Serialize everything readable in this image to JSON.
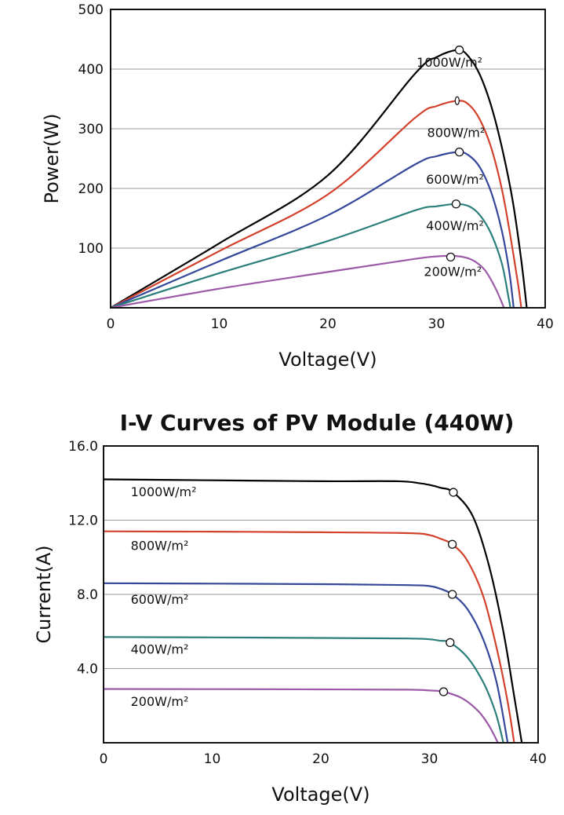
{
  "chart_data": [
    {
      "type": "line",
      "title": "",
      "xlabel": "Voltage(V)",
      "ylabel": "Power(W)",
      "xlim": [
        0,
        40
      ],
      "ylim": [
        0,
        500
      ],
      "x_ticks": [
        "0",
        "10",
        "20",
        "30",
        "40"
      ],
      "x_tick_values": [
        0,
        10,
        20,
        30,
        40
      ],
      "y_ticks": [
        "100",
        "200",
        "300",
        "400",
        "500"
      ],
      "y_tick_values": [
        100,
        200,
        300,
        400,
        500
      ],
      "grid": "horizontal",
      "series": [
        {
          "name": "1000W/m²",
          "color": "#000000",
          "label_at": [
            31.2,
            404
          ],
          "points": [
            [
              0,
              0
            ],
            [
              10,
              108
            ],
            [
              20,
              222
            ],
            [
              28,
              392
            ],
            [
              30,
              420
            ],
            [
              32,
              432
            ],
            [
              33,
              420
            ],
            [
              34,
              390
            ],
            [
              35,
              340
            ],
            [
              36,
              270
            ],
            [
              37,
              180
            ],
            [
              37.8,
              80
            ],
            [
              38.3,
              0
            ]
          ],
          "mpp": [
            32.1,
            432
          ]
        },
        {
          "name": "800W/m²",
          "color": "#d2412b",
          "label_at": [
            31.8,
            286
          ],
          "points": [
            [
              0,
              0
            ],
            [
              10,
              95
            ],
            [
              20,
              190
            ],
            [
              28,
              318
            ],
            [
              30,
              338
            ],
            [
              32,
              347
            ],
            [
              33,
              340
            ],
            [
              34,
              315
            ],
            [
              35,
              270
            ],
            [
              36,
              200
            ],
            [
              36.8,
              120
            ],
            [
              37.5,
              40
            ],
            [
              37.8,
              0
            ]
          ],
          "mpp": [
            31.9,
            347
          ]
        },
        {
          "name": "600W/m²",
          "color": "#34479a",
          "label_at": [
            31.7,
            208
          ],
          "points": [
            [
              0,
              0
            ],
            [
              10,
              78
            ],
            [
              20,
              155
            ],
            [
              28,
              240
            ],
            [
              30,
              254
            ],
            [
              32,
              261
            ],
            [
              33,
              255
            ],
            [
              34,
              235
            ],
            [
              35,
              195
            ],
            [
              36,
              130
            ],
            [
              36.7,
              60
            ],
            [
              37.1,
              0
            ]
          ],
          "mpp": [
            32.1,
            261
          ]
        },
        {
          "name": "400W/m²",
          "color": "#2b7f7a",
          "label_at": [
            31.7,
            130
          ],
          "points": [
            [
              0,
              0
            ],
            [
              10,
              58
            ],
            [
              20,
              112
            ],
            [
              28,
              163
            ],
            [
              30,
              170
            ],
            [
              31.8,
              174
            ],
            [
              33,
              170
            ],
            [
              34,
              155
            ],
            [
              35,
              125
            ],
            [
              36,
              75
            ],
            [
              36.6,
              20
            ],
            [
              36.8,
              0
            ]
          ],
          "mpp": [
            31.8,
            174
          ]
        },
        {
          "name": "200W/m²",
          "color": "#9b59a8",
          "label_at": [
            31.5,
            53
          ],
          "points": [
            [
              0,
              0
            ],
            [
              10,
              32
            ],
            [
              20,
              60
            ],
            [
              28,
              82
            ],
            [
              30,
              86
            ],
            [
              31.2,
              87
            ],
            [
              32.5,
              85
            ],
            [
              33.5,
              78
            ],
            [
              34.5,
              62
            ],
            [
              35.5,
              30
            ],
            [
              36.2,
              0
            ]
          ],
          "mpp": [
            31.3,
            85
          ]
        }
      ]
    },
    {
      "type": "line",
      "title": "I-V Curves of PV Module (440W)",
      "xlabel": "Voltage(V)",
      "ylabel": "Current(A)",
      "xlim": [
        0,
        40
      ],
      "ylim": [
        0,
        16
      ],
      "x_ticks": [
        "0",
        "10",
        "20",
        "30",
        "40"
      ],
      "x_tick_values": [
        0,
        10,
        20,
        30,
        40
      ],
      "y_ticks": [
        "4.0",
        "8.0",
        "12.0",
        "16.0"
      ],
      "y_tick_values": [
        4,
        8,
        12,
        16
      ],
      "grid": "horizontal",
      "series": [
        {
          "name": "1000W/m²",
          "color": "#000000",
          "label_at": [
            2.5,
            13.3
          ],
          "points": [
            [
              0,
              14.2
            ],
            [
              10,
              14.15
            ],
            [
              20,
              14.1
            ],
            [
              27,
              14.1
            ],
            [
              29,
              14.0
            ],
            [
              30,
              13.9
            ],
            [
              31,
              13.75
            ],
            [
              32.2,
              13.5
            ],
            [
              34,
              12.2
            ],
            [
              35.5,
              9.5
            ],
            [
              36.8,
              6
            ],
            [
              37.8,
              2.5
            ],
            [
              38.5,
              0
            ]
          ],
          "mpp": [
            32.2,
            13.5
          ]
        },
        {
          "name": "800W/m²",
          "color": "#d2412b",
          "label_at": [
            2.5,
            10.4
          ],
          "points": [
            [
              0,
              11.4
            ],
            [
              10,
              11.38
            ],
            [
              20,
              11.35
            ],
            [
              28,
              11.3
            ],
            [
              30,
              11.2
            ],
            [
              31,
              11.0
            ],
            [
              32.1,
              10.7
            ],
            [
              33.5,
              9.8
            ],
            [
              35,
              7.8
            ],
            [
              36.3,
              4.8
            ],
            [
              37.2,
              2.2
            ],
            [
              37.8,
              0
            ]
          ],
          "mpp": [
            32.1,
            10.7
          ]
        },
        {
          "name": "600W/m²",
          "color": "#34479a",
          "label_at": [
            2.5,
            7.5
          ],
          "points": [
            [
              0,
              8.6
            ],
            [
              10,
              8.58
            ],
            [
              20,
              8.55
            ],
            [
              28,
              8.5
            ],
            [
              30,
              8.45
            ],
            [
              31,
              8.3
            ],
            [
              32.1,
              8.0
            ],
            [
              33.5,
              7.2
            ],
            [
              35,
              5.5
            ],
            [
              36.2,
              3.2
            ],
            [
              37.2,
              0
            ]
          ],
          "mpp": [
            32.1,
            8.0
          ]
        },
        {
          "name": "400W/m²",
          "color": "#2b7f7a",
          "label_at": [
            2.5,
            4.8
          ],
          "points": [
            [
              0,
              5.7
            ],
            [
              10,
              5.68
            ],
            [
              20,
              5.65
            ],
            [
              28,
              5.62
            ],
            [
              30,
              5.58
            ],
            [
              31,
              5.5
            ],
            [
              31.9,
              5.4
            ],
            [
              33.5,
              4.6
            ],
            [
              35,
              3.2
            ],
            [
              36.1,
              1.6
            ],
            [
              36.8,
              0
            ]
          ],
          "mpp": [
            31.9,
            5.4
          ]
        },
        {
          "name": "200W/m²",
          "color": "#9b59a8",
          "label_at": [
            2.5,
            2.0
          ],
          "points": [
            [
              0,
              2.9
            ],
            [
              10,
              2.89
            ],
            [
              20,
              2.88
            ],
            [
              28,
              2.86
            ],
            [
              30,
              2.82
            ],
            [
              31.3,
              2.75
            ],
            [
              33,
              2.4
            ],
            [
              34.5,
              1.7
            ],
            [
              35.5,
              0.9
            ],
            [
              36.3,
              0
            ]
          ],
          "mpp": [
            31.3,
            2.75
          ]
        }
      ]
    }
  ]
}
